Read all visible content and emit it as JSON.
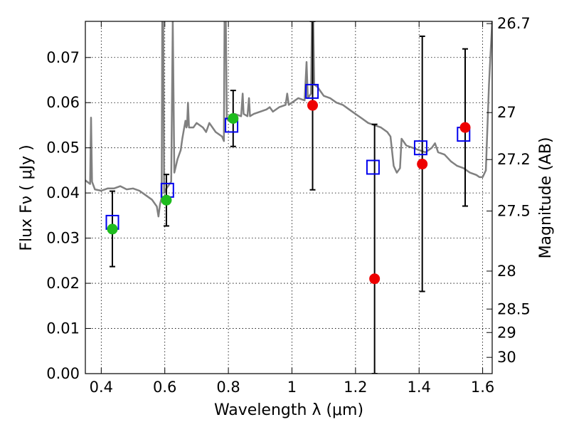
{
  "chart_data": {
    "type": "scatter",
    "xlabel": "Wavelength  λ (μm)",
    "ylabel": "Flux  Fν  ( μJy )",
    "y2label": "Magnitude (AB)",
    "xlim": [
      0.35,
      1.63
    ],
    "ylim": [
      0.0,
      0.078
    ],
    "grid": true,
    "xticks": [
      0.4,
      0.6,
      0.8,
      1.0,
      1.2,
      1.4,
      1.6
    ],
    "xtick_labels": [
      "0.4",
      "0.6",
      "0.8",
      "1",
      "1.2",
      "1.4",
      "1.6"
    ],
    "yticks": [
      0.0,
      0.01,
      0.02,
      0.03,
      0.04,
      0.05,
      0.06,
      0.07
    ],
    "ytick_labels": [
      "0.00",
      "0.01",
      "0.02",
      "0.03",
      "0.04",
      "0.05",
      "0.06",
      "0.07"
    ],
    "y2ticks": [
      {
        "label": "26.7",
        "flux": 0.0775
      },
      {
        "label": "27",
        "flux": 0.0578
      },
      {
        "label": "27.2",
        "flux": 0.0474
      },
      {
        "label": "27.5",
        "flux": 0.036
      },
      {
        "label": "28",
        "flux": 0.0227
      },
      {
        "label": "28.5",
        "flux": 0.0143
      },
      {
        "label": "29",
        "flux": 0.0091
      },
      {
        "label": "30",
        "flux": 0.0036
      }
    ],
    "colors": {
      "model": "#808080",
      "green": "#1ebc1e",
      "red": "#ee0000",
      "box": "#0000ee",
      "errorbar": "#000000"
    },
    "observed_points": [
      {
        "x": 0.435,
        "y": 0.032,
        "yerr_low": 0.0237,
        "yerr_high": 0.0404,
        "color": "green"
      },
      {
        "x": 0.605,
        "y": 0.0384,
        "yerr_low": 0.0327,
        "yerr_high": 0.0441,
        "color": "green"
      },
      {
        "x": 0.815,
        "y": 0.0565,
        "yerr_low": 0.0503,
        "yerr_high": 0.0627,
        "color": "green"
      },
      {
        "x": 1.065,
        "y": 0.0594,
        "yerr_low": 0.0407,
        "yerr_high": 0.078,
        "color": "red"
      },
      {
        "x": 1.26,
        "y": 0.021,
        "yerr_low": 0.0,
        "yerr_high": 0.0552,
        "color": "red"
      },
      {
        "x": 1.41,
        "y": 0.0464,
        "yerr_low": 0.0182,
        "yerr_high": 0.0747,
        "color": "red"
      },
      {
        "x": 1.545,
        "y": 0.0545,
        "yerr_low": 0.0371,
        "yerr_high": 0.0719,
        "color": "red"
      }
    ],
    "model_points": [
      {
        "x": 0.435,
        "y": 0.0335
      },
      {
        "x": 0.608,
        "y": 0.0406
      },
      {
        "x": 0.81,
        "y": 0.055
      },
      {
        "x": 1.063,
        "y": 0.0625
      },
      {
        "x": 1.255,
        "y": 0.0457
      },
      {
        "x": 1.405,
        "y": 0.05
      },
      {
        "x": 1.54,
        "y": 0.053
      }
    ],
    "model_spectrum": [
      [
        0.35,
        0.0428
      ],
      [
        0.365,
        0.042
      ],
      [
        0.368,
        0.0567
      ],
      [
        0.371,
        0.0425
      ],
      [
        0.38,
        0.0408
      ],
      [
        0.4,
        0.0405
      ],
      [
        0.42,
        0.041
      ],
      [
        0.44,
        0.041
      ],
      [
        0.46,
        0.0415
      ],
      [
        0.48,
        0.0408
      ],
      [
        0.5,
        0.041
      ],
      [
        0.52,
        0.0405
      ],
      [
        0.54,
        0.0395
      ],
      [
        0.56,
        0.0385
      ],
      [
        0.575,
        0.037
      ],
      [
        0.58,
        0.0348
      ],
      [
        0.585,
        0.0375
      ],
      [
        0.59,
        0.039
      ],
      [
        0.592,
        0.078
      ],
      [
        0.595,
        0.078
      ],
      [
        0.598,
        0.04
      ],
      [
        0.605,
        0.041
      ],
      [
        0.62,
        0.0425
      ],
      [
        0.625,
        0.078
      ],
      [
        0.63,
        0.0445
      ],
      [
        0.64,
        0.0475
      ],
      [
        0.65,
        0.0495
      ],
      [
        0.655,
        0.052
      ],
      [
        0.66,
        0.054
      ],
      [
        0.665,
        0.056
      ],
      [
        0.668,
        0.0545
      ],
      [
        0.67,
        0.055
      ],
      [
        0.673,
        0.06
      ],
      [
        0.676,
        0.0545
      ],
      [
        0.69,
        0.0545
      ],
      [
        0.7,
        0.0555
      ],
      [
        0.72,
        0.0545
      ],
      [
        0.73,
        0.0535
      ],
      [
        0.74,
        0.0555
      ],
      [
        0.76,
        0.0535
      ],
      [
        0.78,
        0.0525
      ],
      [
        0.786,
        0.0515
      ],
      [
        0.788,
        0.078
      ],
      [
        0.792,
        0.078
      ],
      [
        0.795,
        0.0565
      ],
      [
        0.8,
        0.056
      ],
      [
        0.82,
        0.0575
      ],
      [
        0.84,
        0.057
      ],
      [
        0.845,
        0.062
      ],
      [
        0.848,
        0.0575
      ],
      [
        0.86,
        0.057
      ],
      [
        0.865,
        0.061
      ],
      [
        0.868,
        0.057
      ],
      [
        0.88,
        0.0575
      ],
      [
        0.9,
        0.058
      ],
      [
        0.92,
        0.0585
      ],
      [
        0.93,
        0.059
      ],
      [
        0.94,
        0.058
      ],
      [
        0.96,
        0.059
      ],
      [
        0.98,
        0.0595
      ],
      [
        0.985,
        0.062
      ],
      [
        0.99,
        0.0595
      ],
      [
        1.0,
        0.06
      ],
      [
        1.02,
        0.061
      ],
      [
        1.04,
        0.0605
      ],
      [
        1.046,
        0.069
      ],
      [
        1.05,
        0.061
      ],
      [
        1.06,
        0.062
      ],
      [
        1.063,
        0.078
      ],
      [
        1.067,
        0.078
      ],
      [
        1.07,
        0.064
      ],
      [
        1.08,
        0.0635
      ],
      [
        1.09,
        0.0625
      ],
      [
        1.1,
        0.0615
      ],
      [
        1.12,
        0.061
      ],
      [
        1.14,
        0.06
      ],
      [
        1.16,
        0.0595
      ],
      [
        1.18,
        0.0585
      ],
      [
        1.2,
        0.0575
      ],
      [
        1.22,
        0.0565
      ],
      [
        1.24,
        0.0555
      ],
      [
        1.26,
        0.055
      ],
      [
        1.28,
        0.0545
      ],
      [
        1.3,
        0.0535
      ],
      [
        1.31,
        0.0525
      ],
      [
        1.32,
        0.046
      ],
      [
        1.33,
        0.0445
      ],
      [
        1.34,
        0.0455
      ],
      [
        1.345,
        0.052
      ],
      [
        1.35,
        0.0515
      ],
      [
        1.36,
        0.0505
      ],
      [
        1.38,
        0.05
      ],
      [
        1.4,
        0.0495
      ],
      [
        1.42,
        0.049
      ],
      [
        1.44,
        0.05
      ],
      [
        1.45,
        0.051
      ],
      [
        1.46,
        0.049
      ],
      [
        1.48,
        0.0485
      ],
      [
        1.5,
        0.047
      ],
      [
        1.52,
        0.046
      ],
      [
        1.54,
        0.0455
      ],
      [
        1.56,
        0.0445
      ],
      [
        1.58,
        0.044
      ],
      [
        1.59,
        0.0435
      ],
      [
        1.6,
        0.0435
      ],
      [
        1.61,
        0.045
      ],
      [
        1.62,
        0.064
      ],
      [
        1.63,
        0.078
      ]
    ]
  }
}
